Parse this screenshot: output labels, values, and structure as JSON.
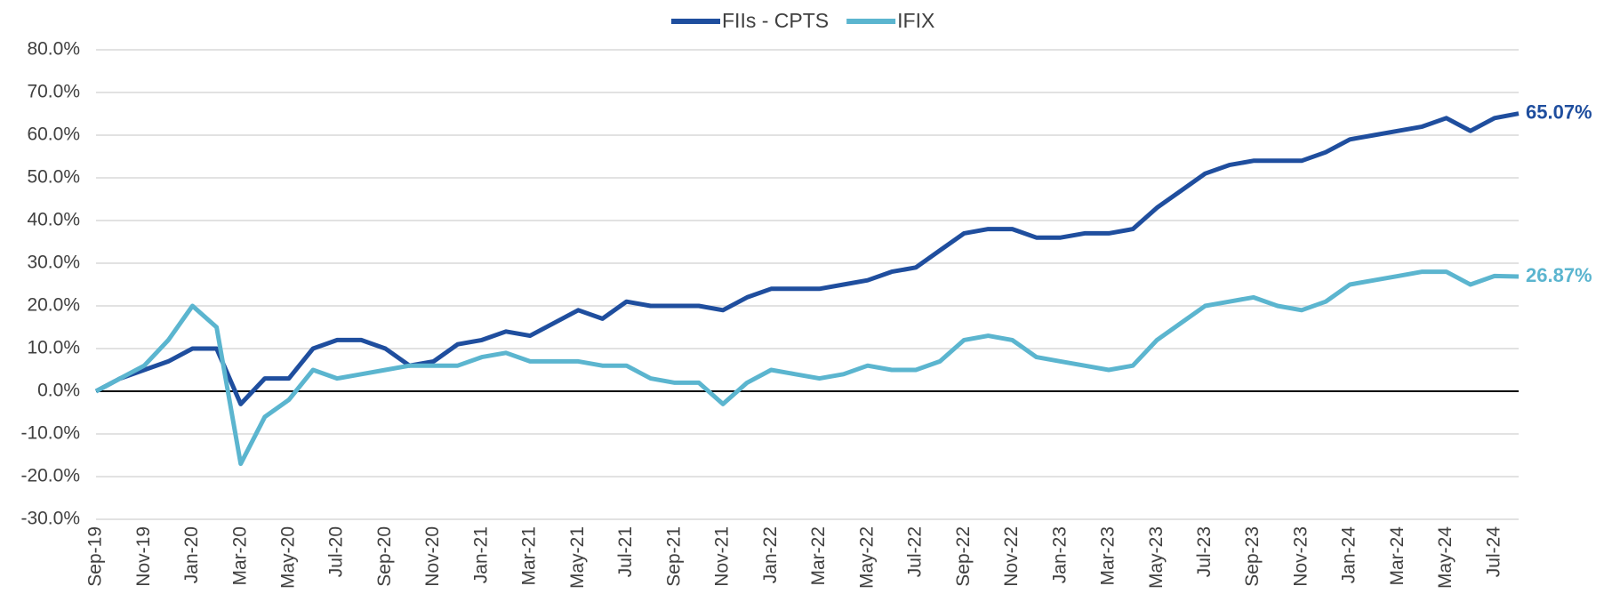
{
  "chart_data": {
    "type": "line",
    "categories": [
      "Sep-19",
      null,
      "Nov-19",
      null,
      "Jan-20",
      null,
      "Mar-20",
      null,
      "May-20",
      null,
      "Jul-20",
      null,
      "Sep-20",
      null,
      "Nov-20",
      null,
      "Jan-21",
      null,
      "Mar-21",
      null,
      "May-21",
      null,
      "Jul-21",
      null,
      "Sep-21",
      null,
      "Nov-21",
      null,
      "Jan-22",
      null,
      "Mar-22",
      null,
      "May-22",
      null,
      "Jul-22",
      null,
      "Sep-22",
      null,
      "Nov-22",
      null,
      "Jan-23",
      null,
      "Mar-23",
      null,
      "May-23",
      null,
      "Jul-23",
      null,
      "Sep-23",
      null,
      "Nov-23",
      null,
      "Jan-24",
      null,
      "Mar-24",
      null,
      "May-24",
      null,
      "Jul-24",
      null
    ],
    "series": [
      {
        "name": "FIIs - CPTS",
        "color": "#1f4e9e",
        "values": [
          0,
          3,
          5,
          7,
          10,
          10,
          -3,
          3,
          3,
          10,
          12,
          12,
          10,
          6,
          7,
          11,
          12,
          14,
          13,
          16,
          19,
          17,
          21,
          20,
          20,
          20,
          19,
          22,
          24,
          24,
          24,
          25,
          26,
          28,
          29,
          33,
          37,
          38,
          38,
          36,
          36,
          37,
          37,
          38,
          43,
          47,
          51,
          53,
          54,
          54,
          54,
          56,
          59,
          60,
          61,
          62,
          64,
          61,
          64,
          65.07
        ],
        "value_labels": [
          null,
          null,
          null,
          null,
          null,
          null,
          null,
          null,
          null,
          null,
          null,
          null,
          null,
          null,
          null,
          null,
          null,
          null,
          null,
          null,
          null,
          null,
          null,
          null,
          null,
          null,
          null,
          null,
          null,
          null,
          null,
          null,
          null,
          null,
          null,
          null,
          null,
          null,
          null,
          null,
          null,
          null,
          null,
          null,
          null,
          null,
          null,
          null,
          null,
          null,
          null,
          null,
          null,
          null,
          null,
          null,
          null,
          null,
          null,
          "65.07%"
        ]
      },
      {
        "name": "IFIX",
        "color": "#5bb5cf",
        "values": [
          0,
          3,
          6,
          12,
          20,
          15,
          -17,
          -6,
          -2,
          5,
          3,
          4,
          5,
          6,
          6,
          6,
          8,
          9,
          7,
          7,
          7,
          6,
          6,
          3,
          2,
          2,
          -3,
          2,
          5,
          4,
          3,
          4,
          6,
          5,
          5,
          7,
          12,
          13,
          12,
          8,
          7,
          6,
          5,
          6,
          12,
          16,
          20,
          21,
          22,
          20,
          19,
          21,
          25,
          26,
          27,
          28,
          28,
          25,
          27,
          26.87
        ],
        "value_labels": [
          null,
          null,
          null,
          null,
          null,
          null,
          null,
          null,
          null,
          null,
          null,
          null,
          null,
          null,
          null,
          null,
          null,
          null,
          null,
          null,
          null,
          null,
          null,
          null,
          null,
          null,
          null,
          null,
          null,
          null,
          null,
          null,
          null,
          null,
          null,
          null,
          null,
          null,
          null,
          null,
          null,
          null,
          null,
          null,
          null,
          null,
          null,
          null,
          null,
          null,
          null,
          null,
          null,
          null,
          null,
          null,
          null,
          null,
          null,
          "26.87%"
        ]
      }
    ],
    "ylim": [
      -30,
      80
    ],
    "yticks": [
      {
        "value": -30,
        "label": "-30.0%"
      },
      {
        "value": -20,
        "label": "-20.0%"
      },
      {
        "value": -10,
        "label": "-10.0%"
      },
      {
        "value": 0,
        "label": "0.0%"
      },
      {
        "value": 10,
        "label": "10.0%"
      },
      {
        "value": 20,
        "label": "20.0%"
      },
      {
        "value": 30,
        "label": "30.0%"
      },
      {
        "value": 40,
        "label": "40.0%"
      },
      {
        "value": 50,
        "label": "50.0%"
      },
      {
        "value": 60,
        "label": "60.0%"
      },
      {
        "value": 70,
        "label": "70.0%"
      },
      {
        "value": 80,
        "label": "80.0%"
      }
    ],
    "grid": true,
    "legend": "top"
  }
}
